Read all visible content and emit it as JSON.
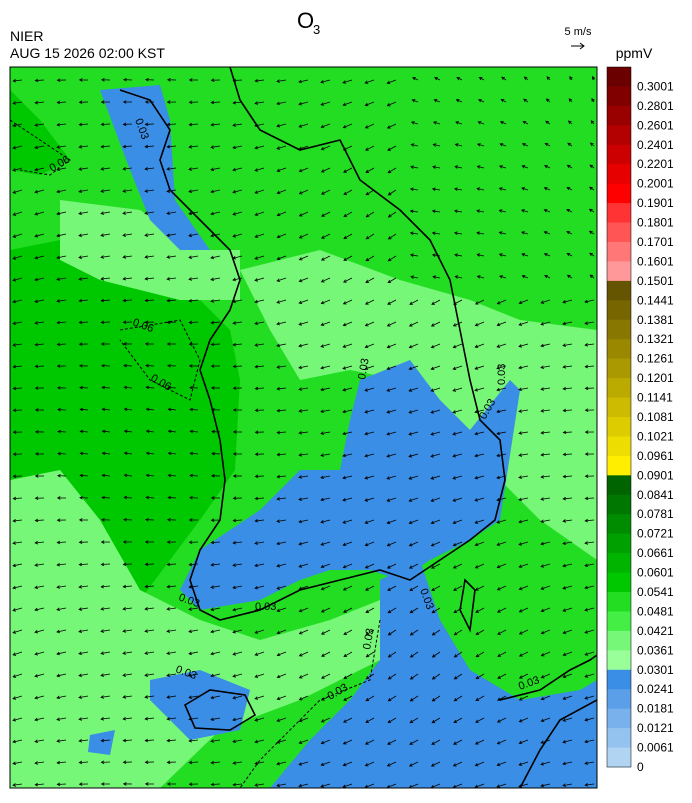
{
  "header": {
    "title": "O",
    "title_subscript": "3",
    "agency": "NIER",
    "timestamp": "AUG 15 2026 02:00 KST",
    "wind_scale": "5 m/s"
  },
  "colorbar": {
    "unit": "ppmV",
    "labels": [
      0.3001,
      0.2801,
      0.2601,
      0.2401,
      0.2201,
      0.2001,
      0.1901,
      0.1801,
      0.1701,
      0.1601,
      0.1501,
      0.1441,
      0.1381,
      0.1321,
      0.1261,
      0.1201,
      0.1141,
      0.1081,
      0.1021,
      0.0961,
      0.0901,
      0.0841,
      0.0781,
      0.0721,
      0.0661,
      0.0601,
      0.0541,
      0.0481,
      0.0421,
      0.0361,
      0.0301,
      0.0241,
      0.0181,
      0.0121,
      0.0061,
      0
    ],
    "colors": [
      "#6b0000",
      "#800000",
      "#990000",
      "#b30000",
      "#cc0000",
      "#e60000",
      "#ff0000",
      "#ff3333",
      "#ff5555",
      "#ff7777",
      "#ff9999",
      "#665500",
      "#776600",
      "#887700",
      "#998800",
      "#aa9900",
      "#bbaa00",
      "#ccbb00",
      "#ddcc00",
      "#eedd00",
      "#ffee00",
      "#006400",
      "#007700",
      "#008c00",
      "#00a000",
      "#00b400",
      "#00c800",
      "#22dd22",
      "#44ee44",
      "#77f777",
      "#99ff99",
      "#3a8ee6",
      "#5a9fe8",
      "#78b1ec",
      "#95c3f0",
      "#b0d4f2"
    ]
  },
  "contour_labels": [
    "0.06",
    "0.06",
    "0.06",
    "0.03",
    "0.03",
    "0.03",
    "0.03",
    "0.03",
    "0.03",
    "0.03",
    "0.03",
    "0.03",
    "0.03",
    "0.03"
  ]
}
